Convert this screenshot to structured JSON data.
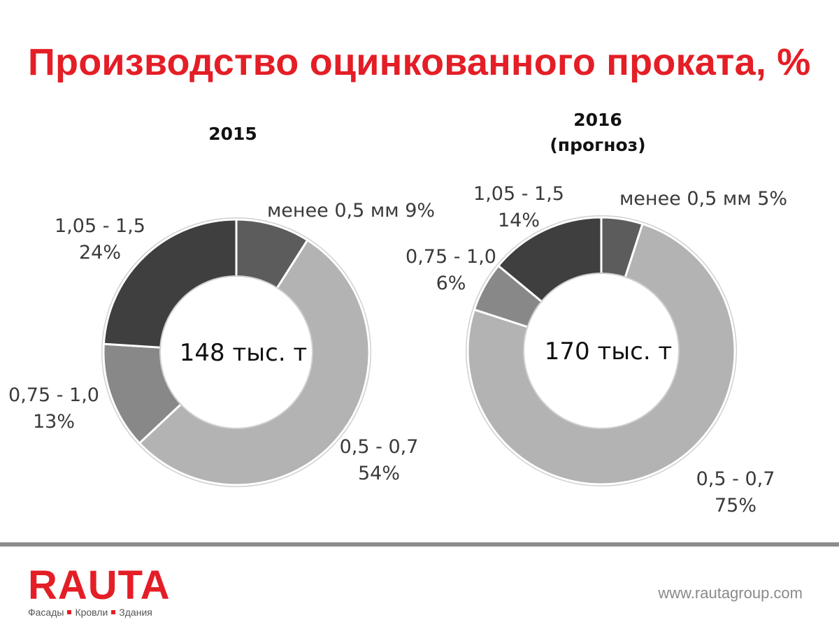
{
  "title": "Производство оцинкованного проката, %",
  "colors": {
    "title": "#e41e26",
    "slice_menee_05": "#5c5c5c",
    "slice_05_07": "#b3b3b3",
    "slice_075_10": "#888888",
    "slice_105_15": "#3f3f3f",
    "divider": "#8c8c8c",
    "brand": "#e41e26"
  },
  "chart_data": [
    {
      "type": "pie",
      "donut": true,
      "title": "2015",
      "subtitle": "",
      "center_label": "148 тыс. т",
      "categories": [
        "менее 0,5 мм",
        "0,5 - 0,7",
        "0,75 - 1,0",
        "1,05 - 1,5"
      ],
      "values": [
        9,
        54,
        13,
        24
      ],
      "value_labels": [
        "9%",
        "54%",
        "13%",
        "24%"
      ],
      "legend": "none"
    },
    {
      "type": "pie",
      "donut": true,
      "title": "2016",
      "subtitle": "(прогноз)",
      "center_label": "170 тыс. т",
      "categories": [
        "менее 0,5 мм",
        "0,5 - 0,7",
        "0,75 - 1,0",
        "1,05 - 1,5"
      ],
      "values": [
        5,
        75,
        6,
        14
      ],
      "value_labels": [
        "5%",
        "75%",
        "6%",
        "14%"
      ],
      "legend": "none"
    }
  ],
  "footer": {
    "brand": "RAUTA",
    "tagline": [
      "Фасады",
      "Кровли",
      "Здания"
    ],
    "website": "www.rautagroup.com"
  }
}
